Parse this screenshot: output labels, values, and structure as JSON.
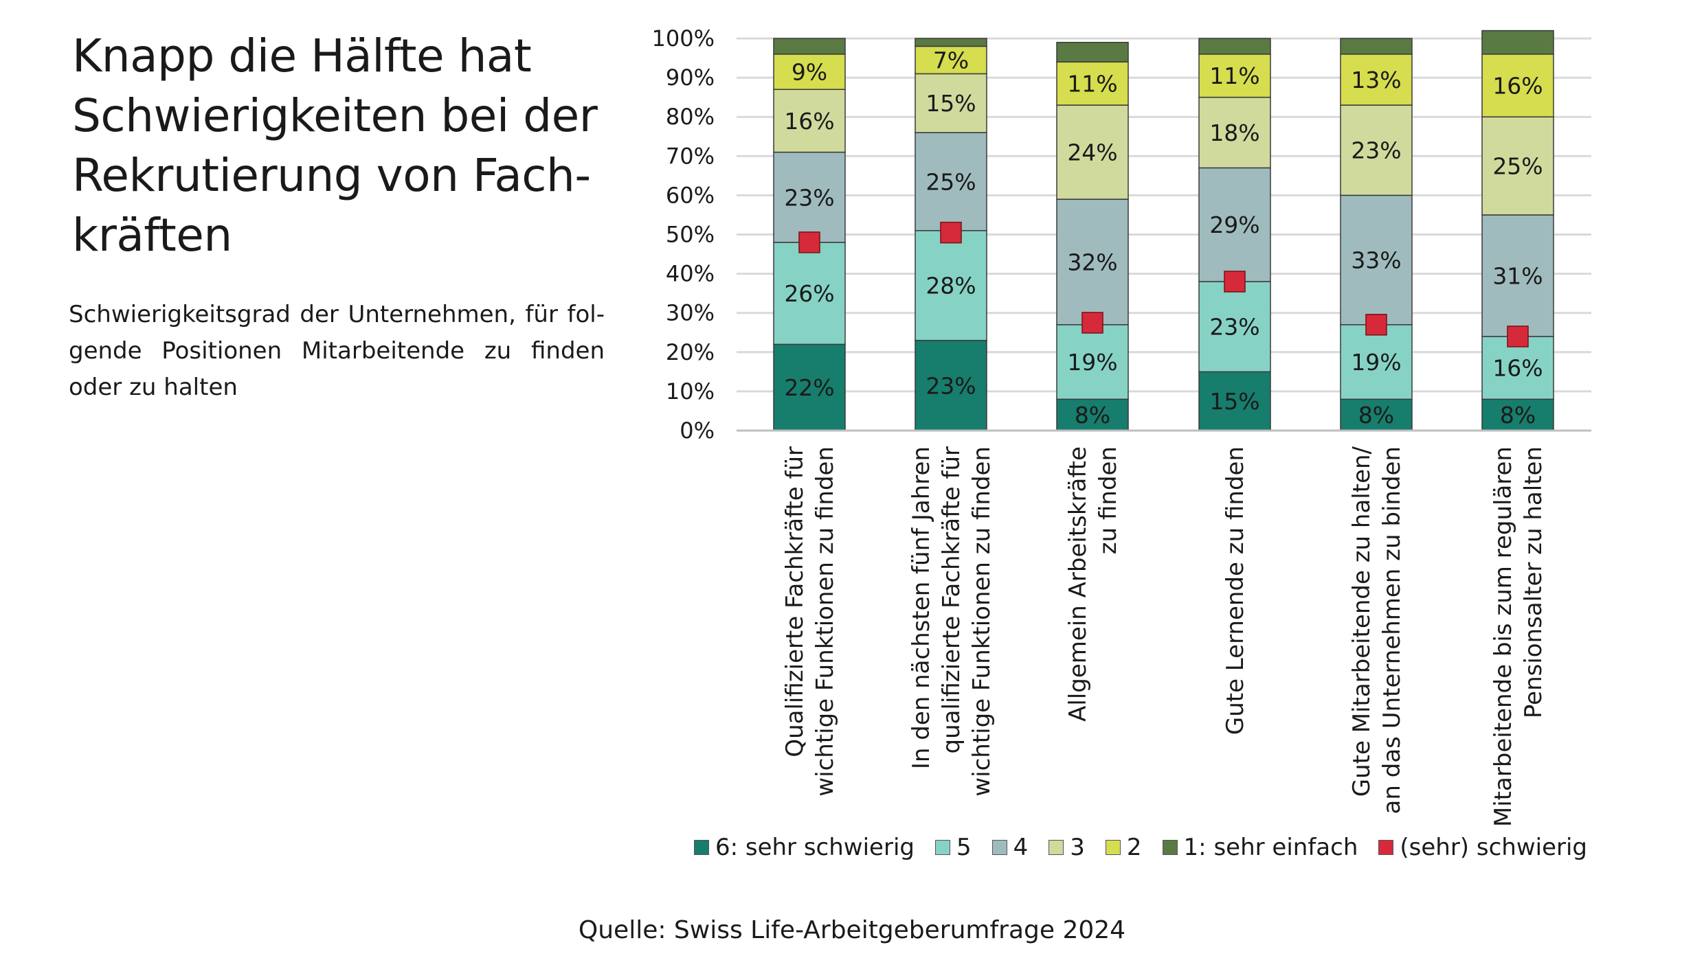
{
  "headline": "Knapp die Hälfte hat Schwierigkeiten bei der Rekrutierung von Fach-kräften",
  "subtitle": "Schwierigkeitsgrad der Unternehmen, für fol-gende Positionen Mitarbeitende zu finden oder zu halten",
  "source": "Quelle: Swiss Life-Arbeitgeberumfrage 2024",
  "chart_data": {
    "type": "bar",
    "stacked": true,
    "ylim": [
      0,
      100
    ],
    "yticks": [
      "0%",
      "10%",
      "20%",
      "30%",
      "40%",
      "50%",
      "60%",
      "70%",
      "80%",
      "90%",
      "100%"
    ],
    "grid": true,
    "legend_position": "bottom",
    "categories": [
      [
        "Qualifizierte Fachkräfte für",
        "wichtige Funktionen zu finden"
      ],
      [
        "In den nächsten fünf Jahren",
        "qualifizierte Fachkräfte für",
        "wichtige Funktionen zu finden"
      ],
      [
        "Allgemein Arbeitskräfte",
        "zu finden"
      ],
      [
        "Gute Lernende zu finden"
      ],
      [
        "Gute Mitarbeitende zu halten/",
        "an das Unternehmen zu binden"
      ],
      [
        "Mitarbeitende bis zum regulären",
        "Pensionsalter zu halten"
      ]
    ],
    "series": [
      {
        "name": "6: sehr schwierig",
        "color": "#177d6c",
        "values": [
          22,
          23,
          8,
          15,
          8,
          8
        ]
      },
      {
        "name": "5",
        "color": "#86d3c6",
        "values": [
          26,
          28,
          19,
          23,
          19,
          16
        ]
      },
      {
        "name": "4",
        "color": "#9fbbbd",
        "values": [
          23,
          25,
          32,
          29,
          33,
          31
        ]
      },
      {
        "name": "3",
        "color": "#d0da9d",
        "values": [
          16,
          15,
          24,
          18,
          23,
          25
        ]
      },
      {
        "name": "2",
        "color": "#d6dd4e",
        "values": [
          9,
          7,
          11,
          11,
          13,
          16
        ]
      },
      {
        "name": "1: sehr einfach",
        "color": "#5a7a43",
        "values": [
          4,
          2,
          5,
          4,
          4,
          6
        ]
      }
    ],
    "markers": {
      "name": "(sehr) schwierig",
      "color": "#d62a3a",
      "values": [
        48,
        50.5,
        27.5,
        38,
        27,
        24
      ]
    },
    "segment_labels": [
      [
        "22%",
        "26%",
        "23%",
        "16%",
        "9%",
        ""
      ],
      [
        "23%",
        "28%",
        "25%",
        "15%",
        "7%",
        ""
      ],
      [
        "8%",
        "19%",
        "32%",
        "24%",
        "11%",
        ""
      ],
      [
        "15%",
        "23%",
        "29%",
        "18%",
        "11%",
        ""
      ],
      [
        "8%",
        "19%",
        "33%",
        "23%",
        "13%",
        ""
      ],
      [
        "8%",
        "16%",
        "31%",
        "25%",
        "16%",
        ""
      ]
    ]
  }
}
